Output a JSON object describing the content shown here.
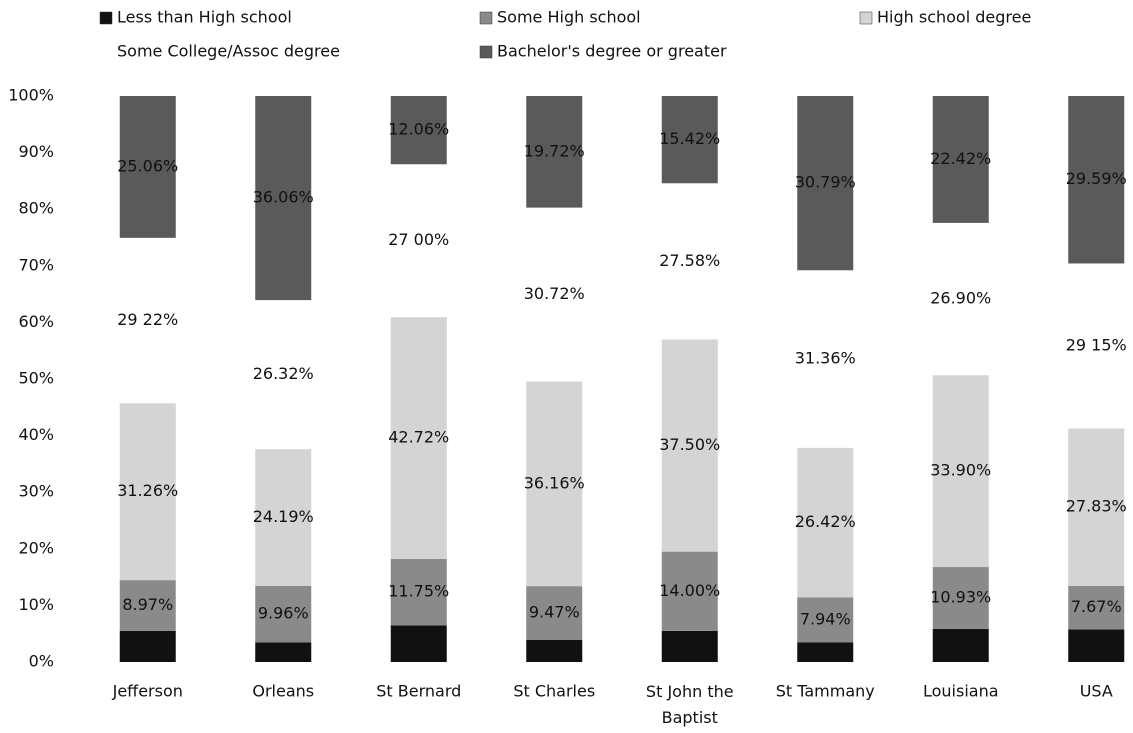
{
  "chart_data": {
    "type": "stacked_bar",
    "categories": [
      "Jefferson",
      "Orleans",
      "St Bernard",
      "St Charles",
      "St John the Baptist",
      "St Tammany",
      "Louisiana",
      "USA"
    ],
    "series": [
      {
        "name": "Less than High school",
        "color": "#111111",
        "values": [
          5.49,
          3.47,
          6.47,
          3.93,
          5.5,
          3.49,
          5.85,
          5.76
        ]
      },
      {
        "name": "Some High school",
        "color": "#8a8a8a",
        "values": [
          8.97,
          9.96,
          11.75,
          9.47,
          14.0,
          7.94,
          10.93,
          7.67
        ],
        "value_labels": [
          "8.97%",
          "9.96%",
          "11.75%",
          "9.47%",
          "14.00%",
          "7.94%",
          "10.93%",
          "7.67%"
        ]
      },
      {
        "name": "High school degree",
        "color": "#d4d4d4",
        "values": [
          31.26,
          24.19,
          42.72,
          36.16,
          37.5,
          26.42,
          33.9,
          27.83
        ],
        "value_labels": [
          "31.26%",
          "24.19%",
          "42.72%",
          "36.16%",
          "37.50%",
          "26.42%",
          "33.90%",
          "27.83%"
        ]
      },
      {
        "name": "Some College/Assoc  degree",
        "color": "#ffffff",
        "values": [
          29.22,
          26.32,
          27.0,
          30.72,
          27.58,
          31.36,
          26.9,
          29.15
        ],
        "value_labels": [
          "29 22%",
          "26.32%",
          "27 00%",
          "30.72%",
          "27.58%",
          "31.36%",
          "26.90%",
          "29 15%"
        ]
      },
      {
        "name": "Bachelor's degree or greater",
        "color": "#5a5a5a",
        "values": [
          25.06,
          36.06,
          12.06,
          19.72,
          15.42,
          30.79,
          22.42,
          29.59
        ],
        "value_labels": [
          "25.06%",
          "36.06%",
          "12.06%",
          "19.72%",
          "15.42%",
          "30.79%",
          "22.42%",
          "29.59%"
        ]
      }
    ],
    "ylim": [
      0,
      100
    ],
    "yticks": [
      {
        "value": 0,
        "label": "0%"
      },
      {
        "value": 10,
        "label": "10%"
      },
      {
        "value": 20,
        "label": "20%"
      },
      {
        "value": 30,
        "label": "30%"
      },
      {
        "value": 40,
        "label": "40%"
      },
      {
        "value": 50,
        "label": "50%"
      },
      {
        "value": 60,
        "label": "60%"
      },
      {
        "value": 70,
        "label": "70%"
      },
      {
        "value": 80,
        "label": "80%"
      },
      {
        "value": 90,
        "label": "90%"
      },
      {
        "value": 100,
        "label": "100%"
      }
    ],
    "legend": "top"
  }
}
